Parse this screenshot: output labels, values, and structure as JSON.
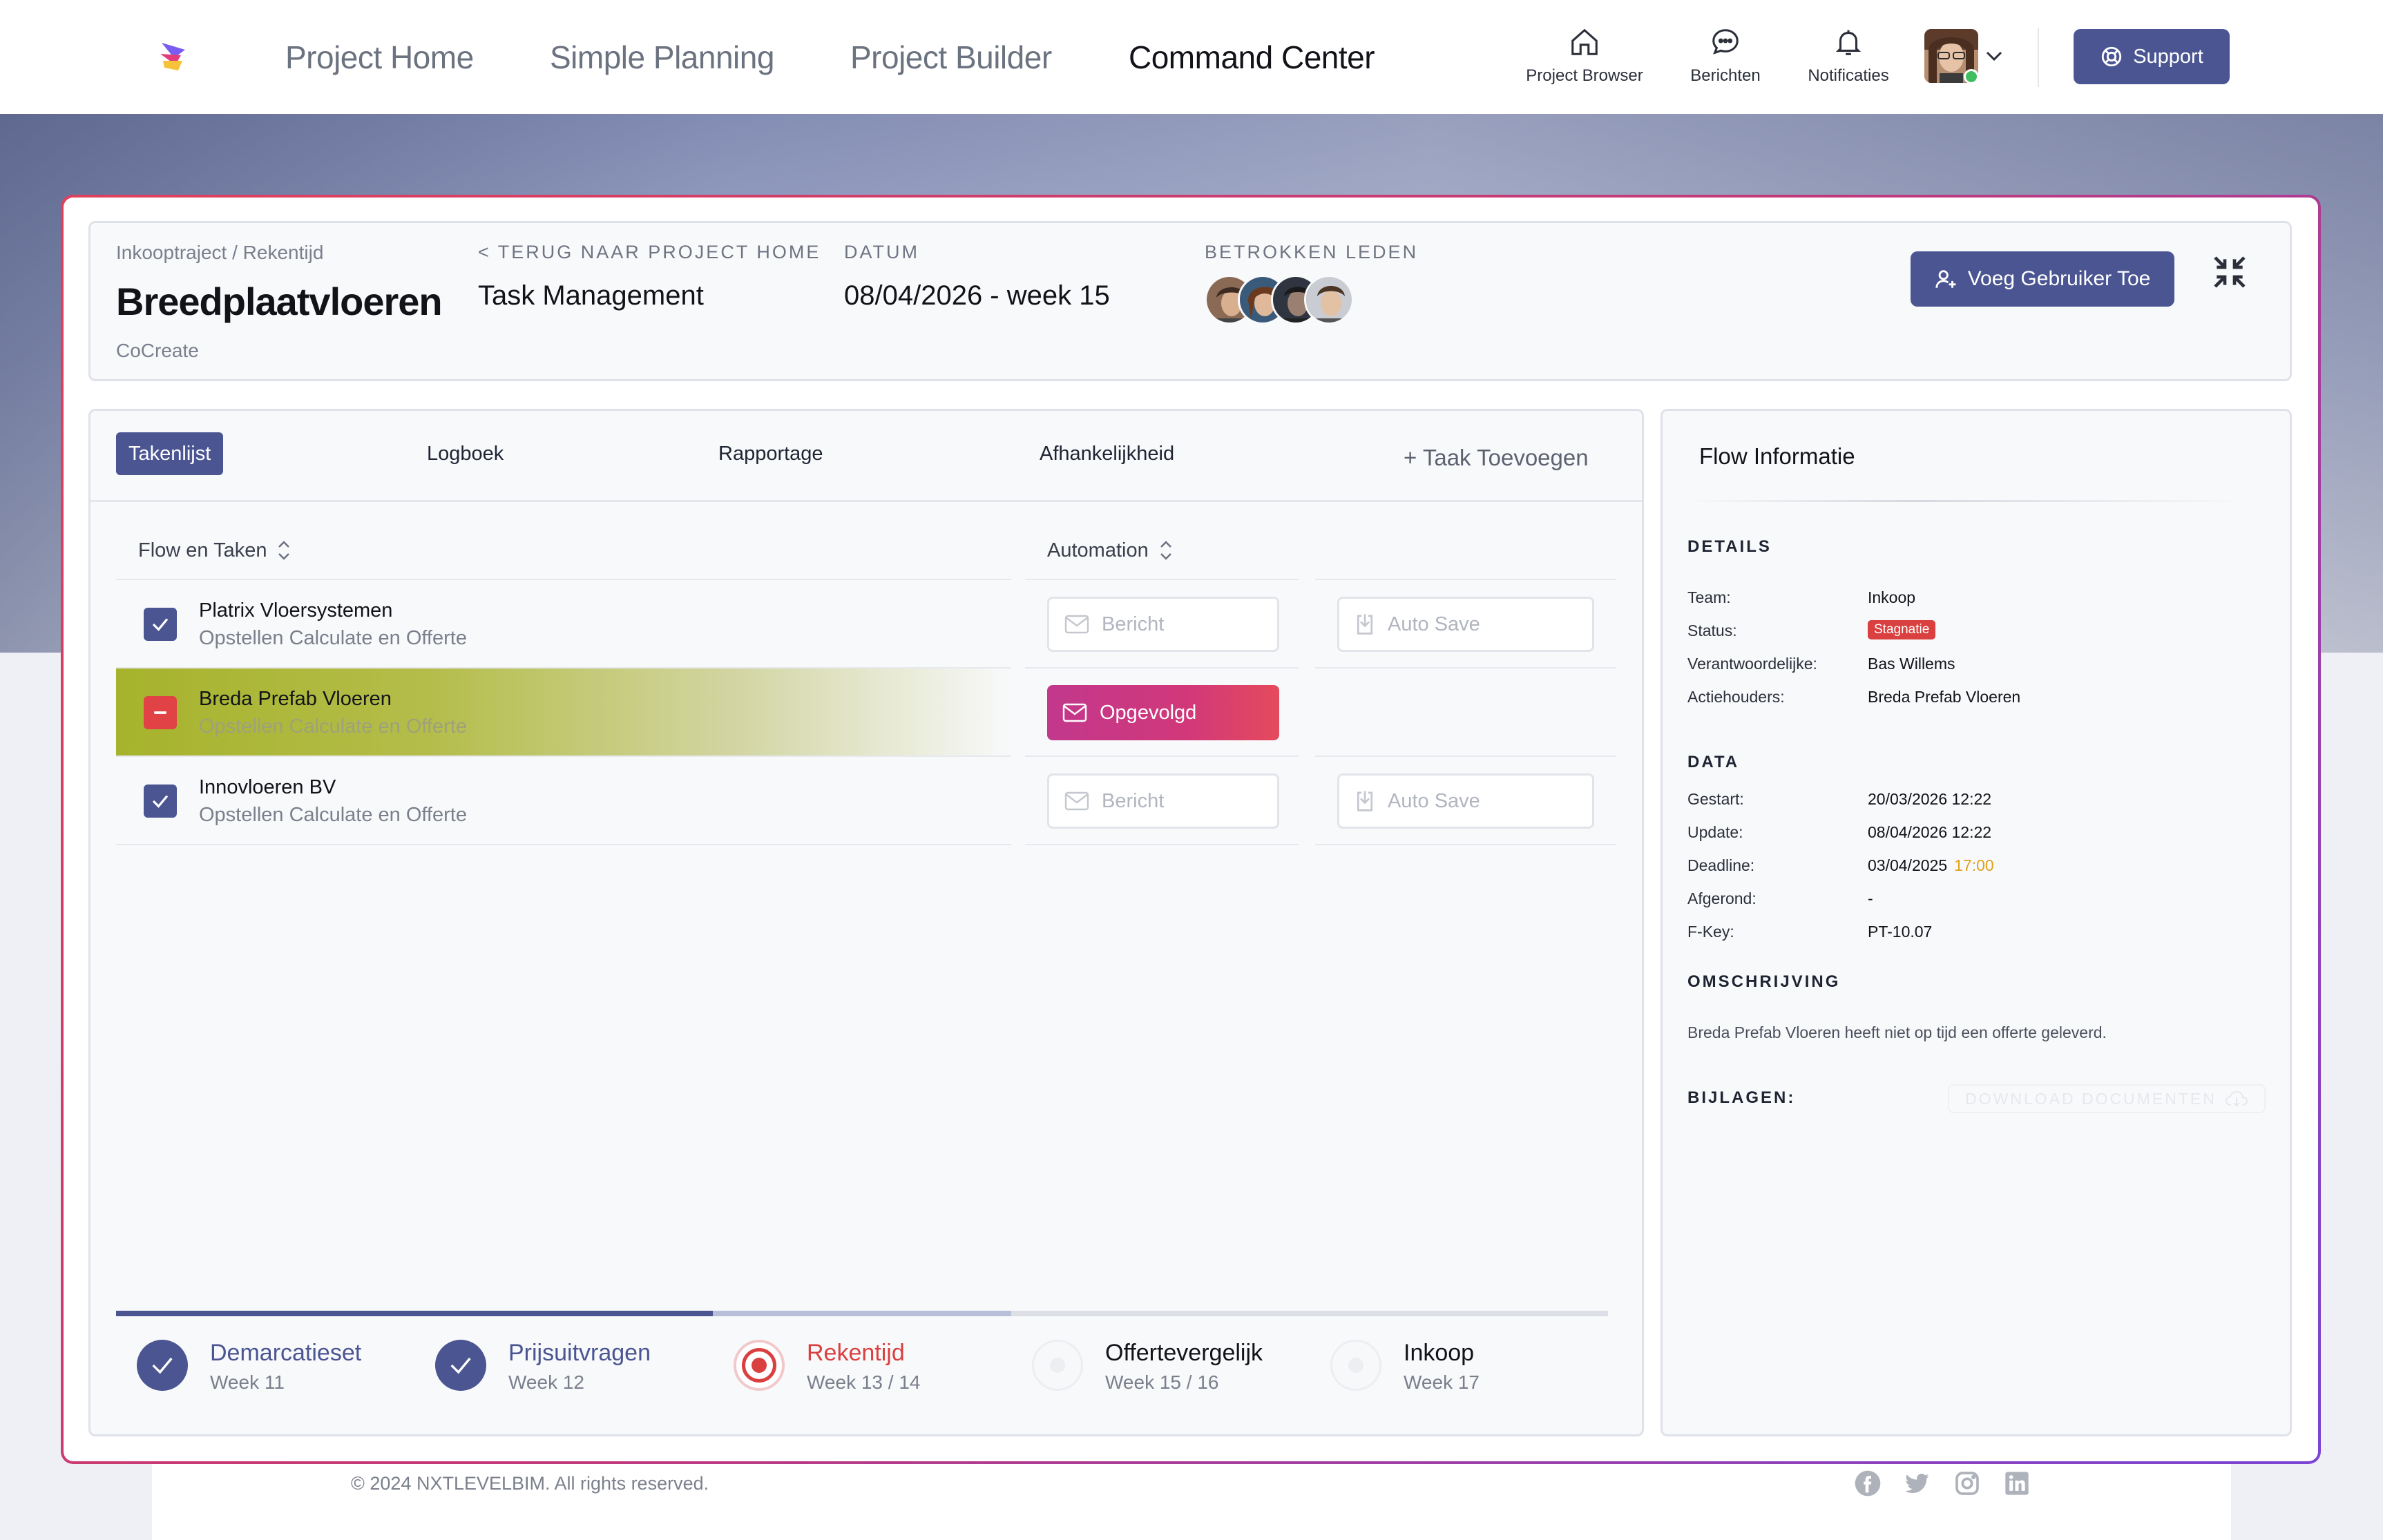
{
  "nav": {
    "links": [
      {
        "label": "Project Home",
        "active": false
      },
      {
        "label": "Simple Planning",
        "active": false
      },
      {
        "label": "Project Builder",
        "active": false
      },
      {
        "label": "Command Center",
        "active": true
      }
    ],
    "icons": [
      {
        "label": "Project Browser",
        "icon": "home-icon"
      },
      {
        "label": "Berichten",
        "icon": "chat-icon"
      },
      {
        "label": "Notificaties",
        "icon": "bell-icon"
      }
    ],
    "support_label": "Support"
  },
  "header": {
    "breadcrumb": "Inkooptraject / Rekentijd",
    "title": "Breedplaatvloeren",
    "subtitle": "CoCreate",
    "back_caption": "< TERUG NAAR PROJECT HOME",
    "back_value": "Task Management",
    "date_caption": "DATUM",
    "date_value": "08/04/2026 - week 15",
    "members_caption": "BETROKKEN LEDEN",
    "add_user_label": "Voeg Gebruiker Toe"
  },
  "tabs": [
    {
      "label": "Takenlijst",
      "active": true
    },
    {
      "label": "Logboek",
      "active": false
    },
    {
      "label": "Rapportage",
      "active": false
    },
    {
      "label": "Afhankelijkheid",
      "active": false
    }
  ],
  "add_task_label": "+  Taak Toevoegen",
  "table": {
    "col_flow": "Flow en Taken",
    "col_automation": "Automation",
    "rows": [
      {
        "title": "Platrix Vloersystemen",
        "sub": "Opstellen Calculate en Offerte",
        "state": "checked",
        "message": "Bericht",
        "autosave": "Auto Save"
      },
      {
        "title": "Breda Prefab Vloeren",
        "sub": "Opstellen Calculate en Offerte",
        "state": "blocked",
        "message": "Opgevolgd",
        "autosave": ""
      },
      {
        "title": "Innovloeren BV",
        "sub": "Opstellen Calculate en Offerte",
        "state": "checked",
        "message": "Bericht",
        "autosave": "Auto Save"
      }
    ]
  },
  "steps": [
    {
      "name": "Demarcatieset",
      "week": "Week 11",
      "state": "done"
    },
    {
      "name": "Prijsuitvragen",
      "week": "Week 12",
      "state": "done"
    },
    {
      "name": "Rekentijd",
      "week": "Week 13 / 14",
      "state": "current"
    },
    {
      "name": "Offertevergelijk",
      "week": "Week 15 / 16",
      "state": "todo"
    },
    {
      "name": "Inkoop",
      "week": "Week 17",
      "state": "todo"
    }
  ],
  "flow": {
    "title": "Flow Informatie",
    "details_caption": "DETAILS",
    "details": [
      {
        "key": "Team:",
        "value": "Inkoop"
      },
      {
        "key": "Status:",
        "value": "Stagnatie"
      },
      {
        "key": "Verantwoordelijke:",
        "value": "Bas Willems"
      },
      {
        "key": "Actiehouders:",
        "value": "Breda Prefab Vloeren"
      }
    ],
    "data_caption": "DATA",
    "data": [
      {
        "key": "Gestart:",
        "value": "20/03/2026  12:22"
      },
      {
        "key": "Update:",
        "value": "08/04/2026  12:22"
      },
      {
        "key": "Deadline:",
        "value": "03/04/2025",
        "time": "17:00"
      },
      {
        "key": "Afgerond:",
        "value": "-"
      },
      {
        "key": "F-Key:",
        "value": "PT-10.07"
      }
    ],
    "desc_caption": "OMSCHRIJVING",
    "description": "Breda Prefab Vloeren heeft niet op tijd een offerte geleverd.",
    "attachments_caption": "BIJLAGEN:",
    "download_label": "DOWNLOAD DOCUMENTEN"
  },
  "footer": {
    "copyright": "© 2024 NXTLEVELBIM. All rights reserved."
  },
  "colors": {
    "primary": "#4a5592",
    "danger": "#d9403f",
    "warning": "#e0a01c"
  }
}
